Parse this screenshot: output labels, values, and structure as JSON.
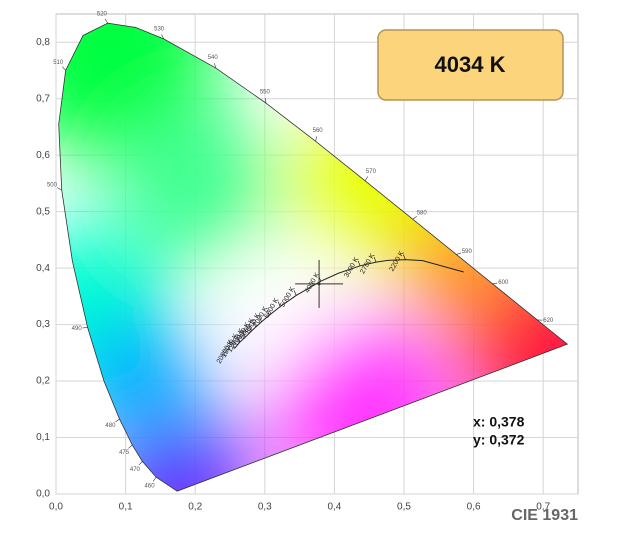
{
  "chart_data": {
    "type": "chromaticity",
    "xlim": [
      0,
      0.75
    ],
    "ylim": [
      0,
      0.85
    ],
    "xticks": [
      {
        "value": 0,
        "label": "0,0"
      },
      {
        "value": 0.1,
        "label": "0,1"
      },
      {
        "value": 0.2,
        "label": "0,2"
      },
      {
        "value": 0.3,
        "label": "0,3"
      },
      {
        "value": 0.4,
        "label": "0,4"
      },
      {
        "value": 0.5,
        "label": "0,5"
      },
      {
        "value": 0.6,
        "label": "0,6"
      },
      {
        "value": 0.7,
        "label": "0,7"
      }
    ],
    "yticks": [
      {
        "value": 0,
        "label": "0,0"
      },
      {
        "value": 0.1,
        "label": "0,1"
      },
      {
        "value": 0.2,
        "label": "0,2"
      },
      {
        "value": 0.3,
        "label": "0,3"
      },
      {
        "value": 0.4,
        "label": "0,4"
      },
      {
        "value": 0.5,
        "label": "0,5"
      },
      {
        "value": 0.6,
        "label": "0,6"
      },
      {
        "value": 0.7,
        "label": "0,7"
      },
      {
        "value": 0.8,
        "label": "0,8"
      }
    ],
    "grid": true,
    "spectral_locus": {
      "x": [
        0.1741,
        0.144,
        0.1241,
        0.1096,
        0.0913,
        0.0687,
        0.0454,
        0.0235,
        0.0082,
        0.0039,
        0.0139,
        0.0389,
        0.0743,
        0.1142,
        0.1547,
        0.2296,
        0.3016,
        0.3731,
        0.4441,
        0.5125,
        0.5752,
        0.627,
        0.6915,
        0.719,
        0.7347
      ],
      "y": [
        0.005,
        0.0297,
        0.0578,
        0.0868,
        0.1327,
        0.2007,
        0.295,
        0.4127,
        0.5384,
        0.6548,
        0.7502,
        0.812,
        0.8338,
        0.8262,
        0.8059,
        0.7543,
        0.6923,
        0.6245,
        0.5547,
        0.4866,
        0.4242,
        0.3725,
        0.3083,
        0.2809,
        0.2653
      ],
      "labels": [
        null,
        "460",
        "470",
        "475",
        "480",
        null,
        "490",
        null,
        "500",
        null,
        "510",
        null,
        "520",
        null,
        "530",
        "540",
        "550",
        "560",
        "570",
        "580",
        "590",
        "600",
        "620",
        null,
        null
      ]
    },
    "planckian_locus": {
      "x": [
        0.5857,
        0.5267,
        0.502,
        0.477,
        0.4599,
        0.4369,
        0.4053,
        0.3805,
        0.3451,
        0.3221,
        0.3064,
        0.2952,
        0.2869,
        0.2807,
        0.272,
        0.2637,
        0.2565
      ],
      "y": [
        0.3931,
        0.4133,
        0.415,
        0.4137,
        0.4106,
        0.4041,
        0.3907,
        0.3768,
        0.3516,
        0.3318,
        0.3166,
        0.3048,
        0.2956,
        0.2884,
        0.2777,
        0.2684,
        0.2577
      ],
      "labels": [
        null,
        null,
        "2200 K",
        null,
        "2700 K",
        "3000 K",
        null,
        "4000 K",
        "5000 K",
        "6000 K",
        "7000 K",
        "8000 K",
        "9000 K",
        "10000 K",
        "12000 K",
        "15000 K",
        "20000 K"
      ]
    },
    "point": {
      "x": 0.378,
      "y": 0.372
    },
    "cct_label": "4034 K",
    "x_label": "x: 0,378",
    "y_label": "y: 0,372",
    "footer": "CIE 1931"
  }
}
